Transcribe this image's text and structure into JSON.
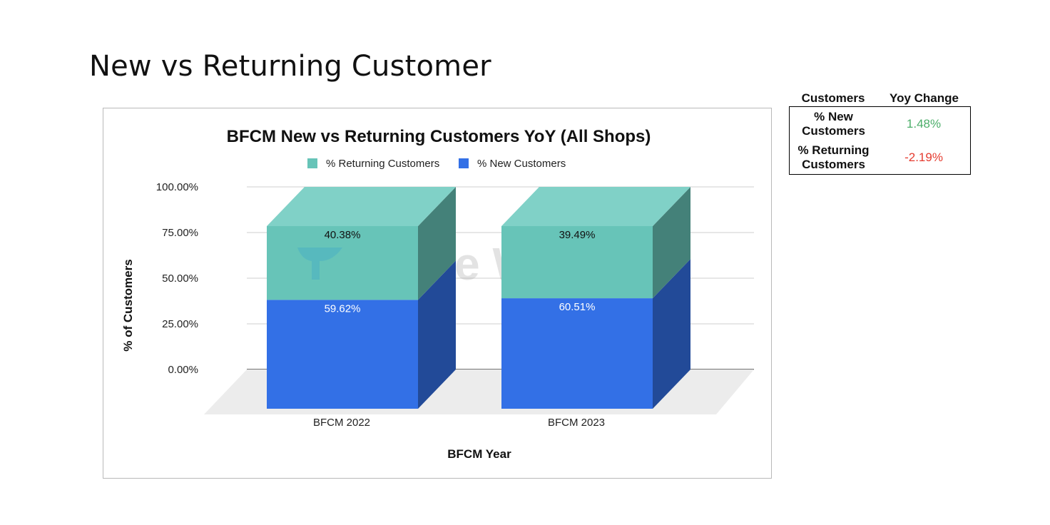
{
  "page": {
    "title": "New vs Returning Customer"
  },
  "chart_data": {
    "type": "bar",
    "stacked": true,
    "style": "3d",
    "title": "BFCM New vs Returning Customers YoY (All Shops)",
    "xlabel": "BFCM Year",
    "ylabel": "% of Customers",
    "categories": [
      "BFCM 2022",
      "BFCM 2023"
    ],
    "series": [
      {
        "name": "% New Customers",
        "values": [
          59.62,
          60.51
        ],
        "labels": [
          "59.62%",
          "60.51%"
        ],
        "color": "#3370e6"
      },
      {
        "name": "% Returning Customers",
        "values": [
          40.38,
          39.49
        ],
        "labels": [
          "40.38%",
          "39.49%"
        ],
        "color": "#67c4b8"
      }
    ],
    "legend_order": [
      "% Returning Customers",
      "% New Customers"
    ],
    "legend_position": "top",
    "ylim": [
      0,
      100
    ],
    "yticks": [
      "0.00%",
      "25.00%",
      "50.00%",
      "75.00%",
      "100.00%"
    ],
    "grid": true,
    "watermark": "Triple Whale"
  },
  "yoy_table": {
    "headers": [
      "Customers",
      "Yoy Change"
    ],
    "rows": [
      {
        "label_lines": [
          "% New",
          "Customers"
        ],
        "value": "1.48%",
        "trend": "positive",
        "color": "#4cae6a"
      },
      {
        "label_lines": [
          "% Returning",
          "Customers"
        ],
        "value": "-2.19%",
        "trend": "negative",
        "color": "#e53b2f"
      }
    ]
  }
}
